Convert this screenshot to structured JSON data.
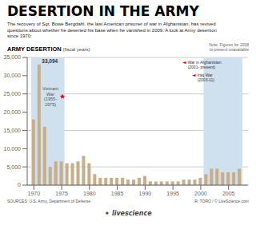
{
  "chart_data": {
    "type": "bar",
    "title": "DESERTION IN THE ARMY",
    "subtitle": "The recovery of Sgt. Bowe Bergdahl, the last American prisoner of war in Afghanistan, has revived\nquestions about whether he deserted his base when he vanished in 2009. A look at Army desertion\nsince 1970:",
    "chart_title": "ARMY DESERTION",
    "chart_subtitle": " (fiscal years)",
    "note": "Note: Figures for 2008\nto present unavailable",
    "source": "SOURCES: U.S. Army, Department of Defense",
    "credit": "R. TORO / © LiveScience.com",
    "logo": "✦ livescience",
    "x": [
      1970,
      1971,
      1972,
      1973,
      1974,
      1975,
      1976,
      1977,
      1978,
      1979,
      1980,
      1981,
      1982,
      1983,
      1984,
      1985,
      1986,
      1987,
      1988,
      1989,
      1990,
      1991,
      1992,
      1993,
      1994,
      1995,
      1996,
      1997,
      1998,
      1999,
      2000,
      2001,
      2002,
      2003,
      2004,
      2005,
      2006,
      2007
    ],
    "values": [
      18000,
      33094,
      16000,
      5000,
      6500,
      6500,
      6000,
      6000,
      6500,
      8000,
      6000,
      3000,
      2000,
      2000,
      2000,
      2000,
      2000,
      1500,
      1500,
      2000,
      2500,
      1000,
      1000,
      1000,
      1000,
      1000,
      1000,
      1500,
      1500,
      1500,
      2000,
      3000,
      4500,
      4500,
      3500,
      3500,
      3500,
      4500
    ],
    "color": "#c8ad87",
    "xlim": [
      1968.8,
      2008.5
    ],
    "xticks": [
      1970,
      1975,
      1980,
      1985,
      1990,
      1995,
      2000,
      2005
    ],
    "ylim": [
      0,
      35000
    ],
    "yticks": [
      0,
      {
        "value": 5000,
        "label": "5,000"
      },
      {
        "value": 10000,
        "label": "10,000"
      },
      {
        "value": 15000,
        "label": "15,000"
      },
      {
        "value": 20000,
        "label": "20,000"
      },
      {
        "value": 25000,
        "label": "25,000"
      },
      {
        "value": 30000,
        "label": "30,000"
      },
      {
        "value": 35000,
        "label": "35,000"
      }
    ],
    "grid": true,
    "spans": [
      {
        "x1": 1969.5,
        "x2": 1975.5,
        "color": "#cfe0ee"
      },
      {
        "x1": 2000.5,
        "x2": 2007.5,
        "color": "#cfe0ee"
      }
    ],
    "annotations": [
      {
        "text": "33,094",
        "x": 1971,
        "y": 33094
      },
      {
        "text": "Vietnam\nWar\n(1955-\n1975)",
        "marker": "star",
        "color": "red"
      },
      {
        "text": "War in Afghanistan\n(2001- present)",
        "pointer": "◄",
        "color": "red"
      },
      {
        "text": "Iraq War\n(2003-11)",
        "pointer": "◄",
        "color": "red"
      }
    ]
  }
}
